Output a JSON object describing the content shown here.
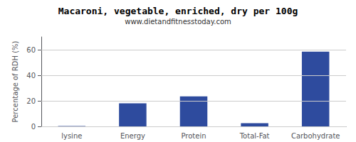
{
  "chart_data": {
    "type": "bar",
    "title": "Macaroni, vegetable, enriched, dry per 100g",
    "subtitle": "www.dietandfitnesstoday.com",
    "categories": [
      "lysine",
      "Energy",
      "Protein",
      "Total-Fat",
      "Carbohydrate"
    ],
    "values": [
      0.3,
      18,
      23.5,
      2.5,
      58.5
    ],
    "color": "#2e4b9e",
    "ylabel": "Percentage of RDH (%)",
    "ylim": [
      0,
      70
    ],
    "yticks": [
      0,
      20,
      40,
      60
    ],
    "grid": true
  }
}
